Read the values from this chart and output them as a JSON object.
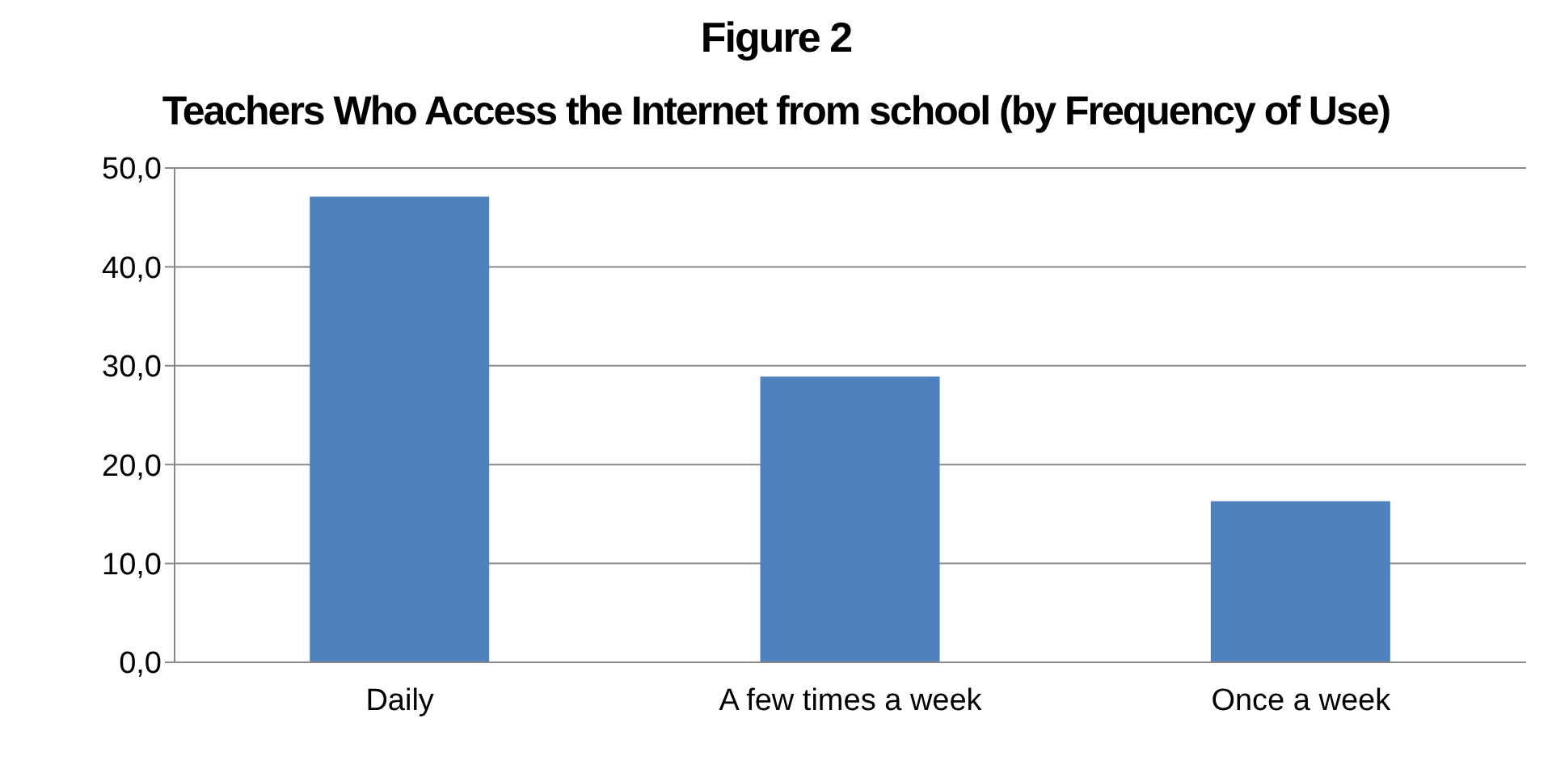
{
  "chart_data": {
    "type": "bar",
    "title": "Figure 2",
    "subtitle": "Teachers Who Access the Internet from school (by Frequency of Use)",
    "categories": [
      "Daily",
      "A few times a week",
      "Once a week"
    ],
    "values": [
      47.1,
      28.9,
      16.3
    ],
    "color": "#4f81bd",
    "ylim": [
      0,
      50
    ],
    "yticks": [
      {
        "value": 0,
        "label": "0,0"
      },
      {
        "value": 10,
        "label": "10,0"
      },
      {
        "value": 20,
        "label": "20,0"
      },
      {
        "value": 30,
        "label": "30,0"
      },
      {
        "value": 40,
        "label": "40,0"
      },
      {
        "value": 50,
        "label": "50,0"
      }
    ],
    "grid": "y",
    "legend": false
  }
}
